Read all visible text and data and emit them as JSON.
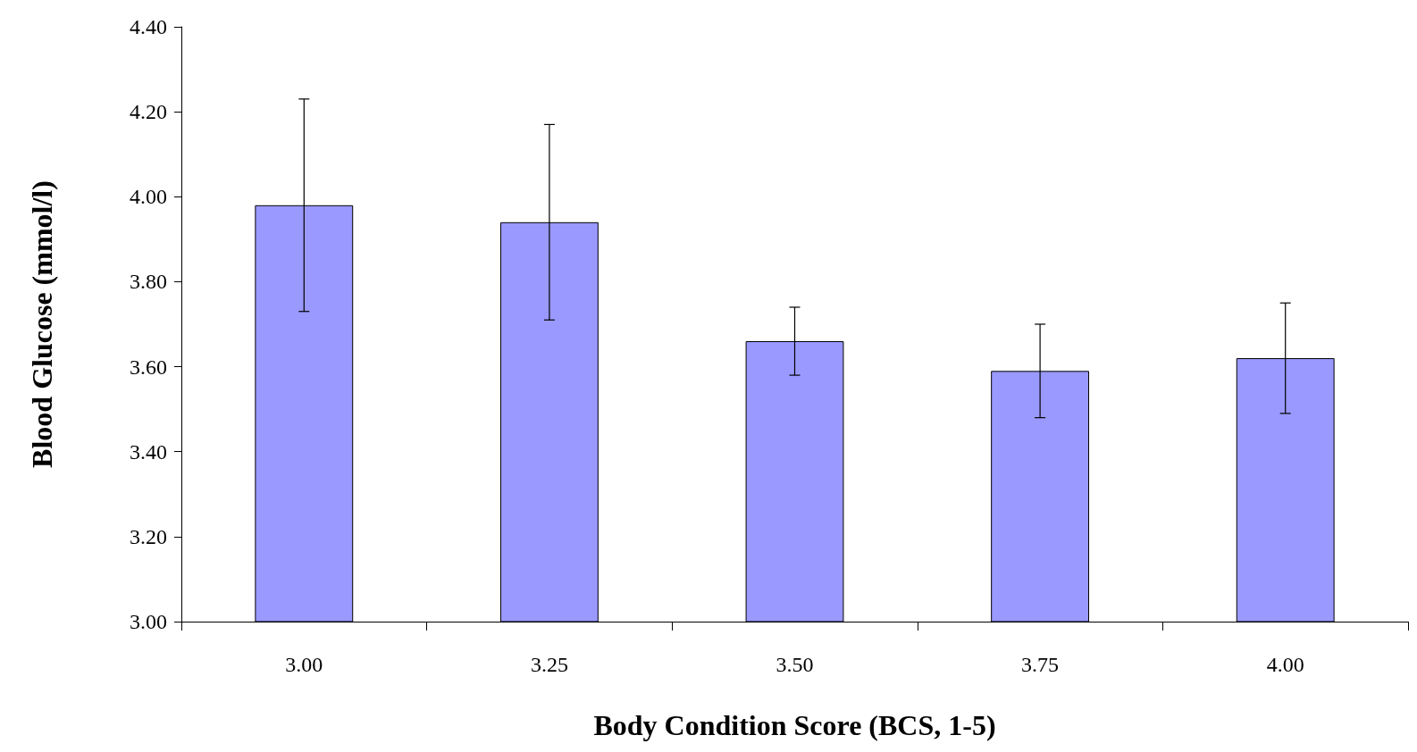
{
  "chart_data": {
    "type": "bar",
    "xlabel": "Body Condition Score (BCS, 1-5)",
    "ylabel": "Blood Glucose (mmol/l)",
    "categories": [
      "3.00",
      "3.25",
      "3.50",
      "3.75",
      "4.00"
    ],
    "values": [
      3.98,
      3.94,
      3.66,
      3.59,
      3.62
    ],
    "errors": [
      0.25,
      0.23,
      0.08,
      0.11,
      0.13
    ],
    "color": "#9999ff",
    "ylim": [
      3.0,
      4.4
    ],
    "yticks": [
      {
        "value": 3.0,
        "label": "3.00"
      },
      {
        "value": 3.2,
        "label": "3.20"
      },
      {
        "value": 3.4,
        "label": "3.40"
      },
      {
        "value": 3.6,
        "label": "3.60"
      },
      {
        "value": 3.8,
        "label": "3.80"
      },
      {
        "value": 4.0,
        "label": "4.00"
      },
      {
        "value": 4.2,
        "label": "4.20"
      },
      {
        "value": 4.4,
        "label": "4.40"
      }
    ],
    "grid": false
  }
}
